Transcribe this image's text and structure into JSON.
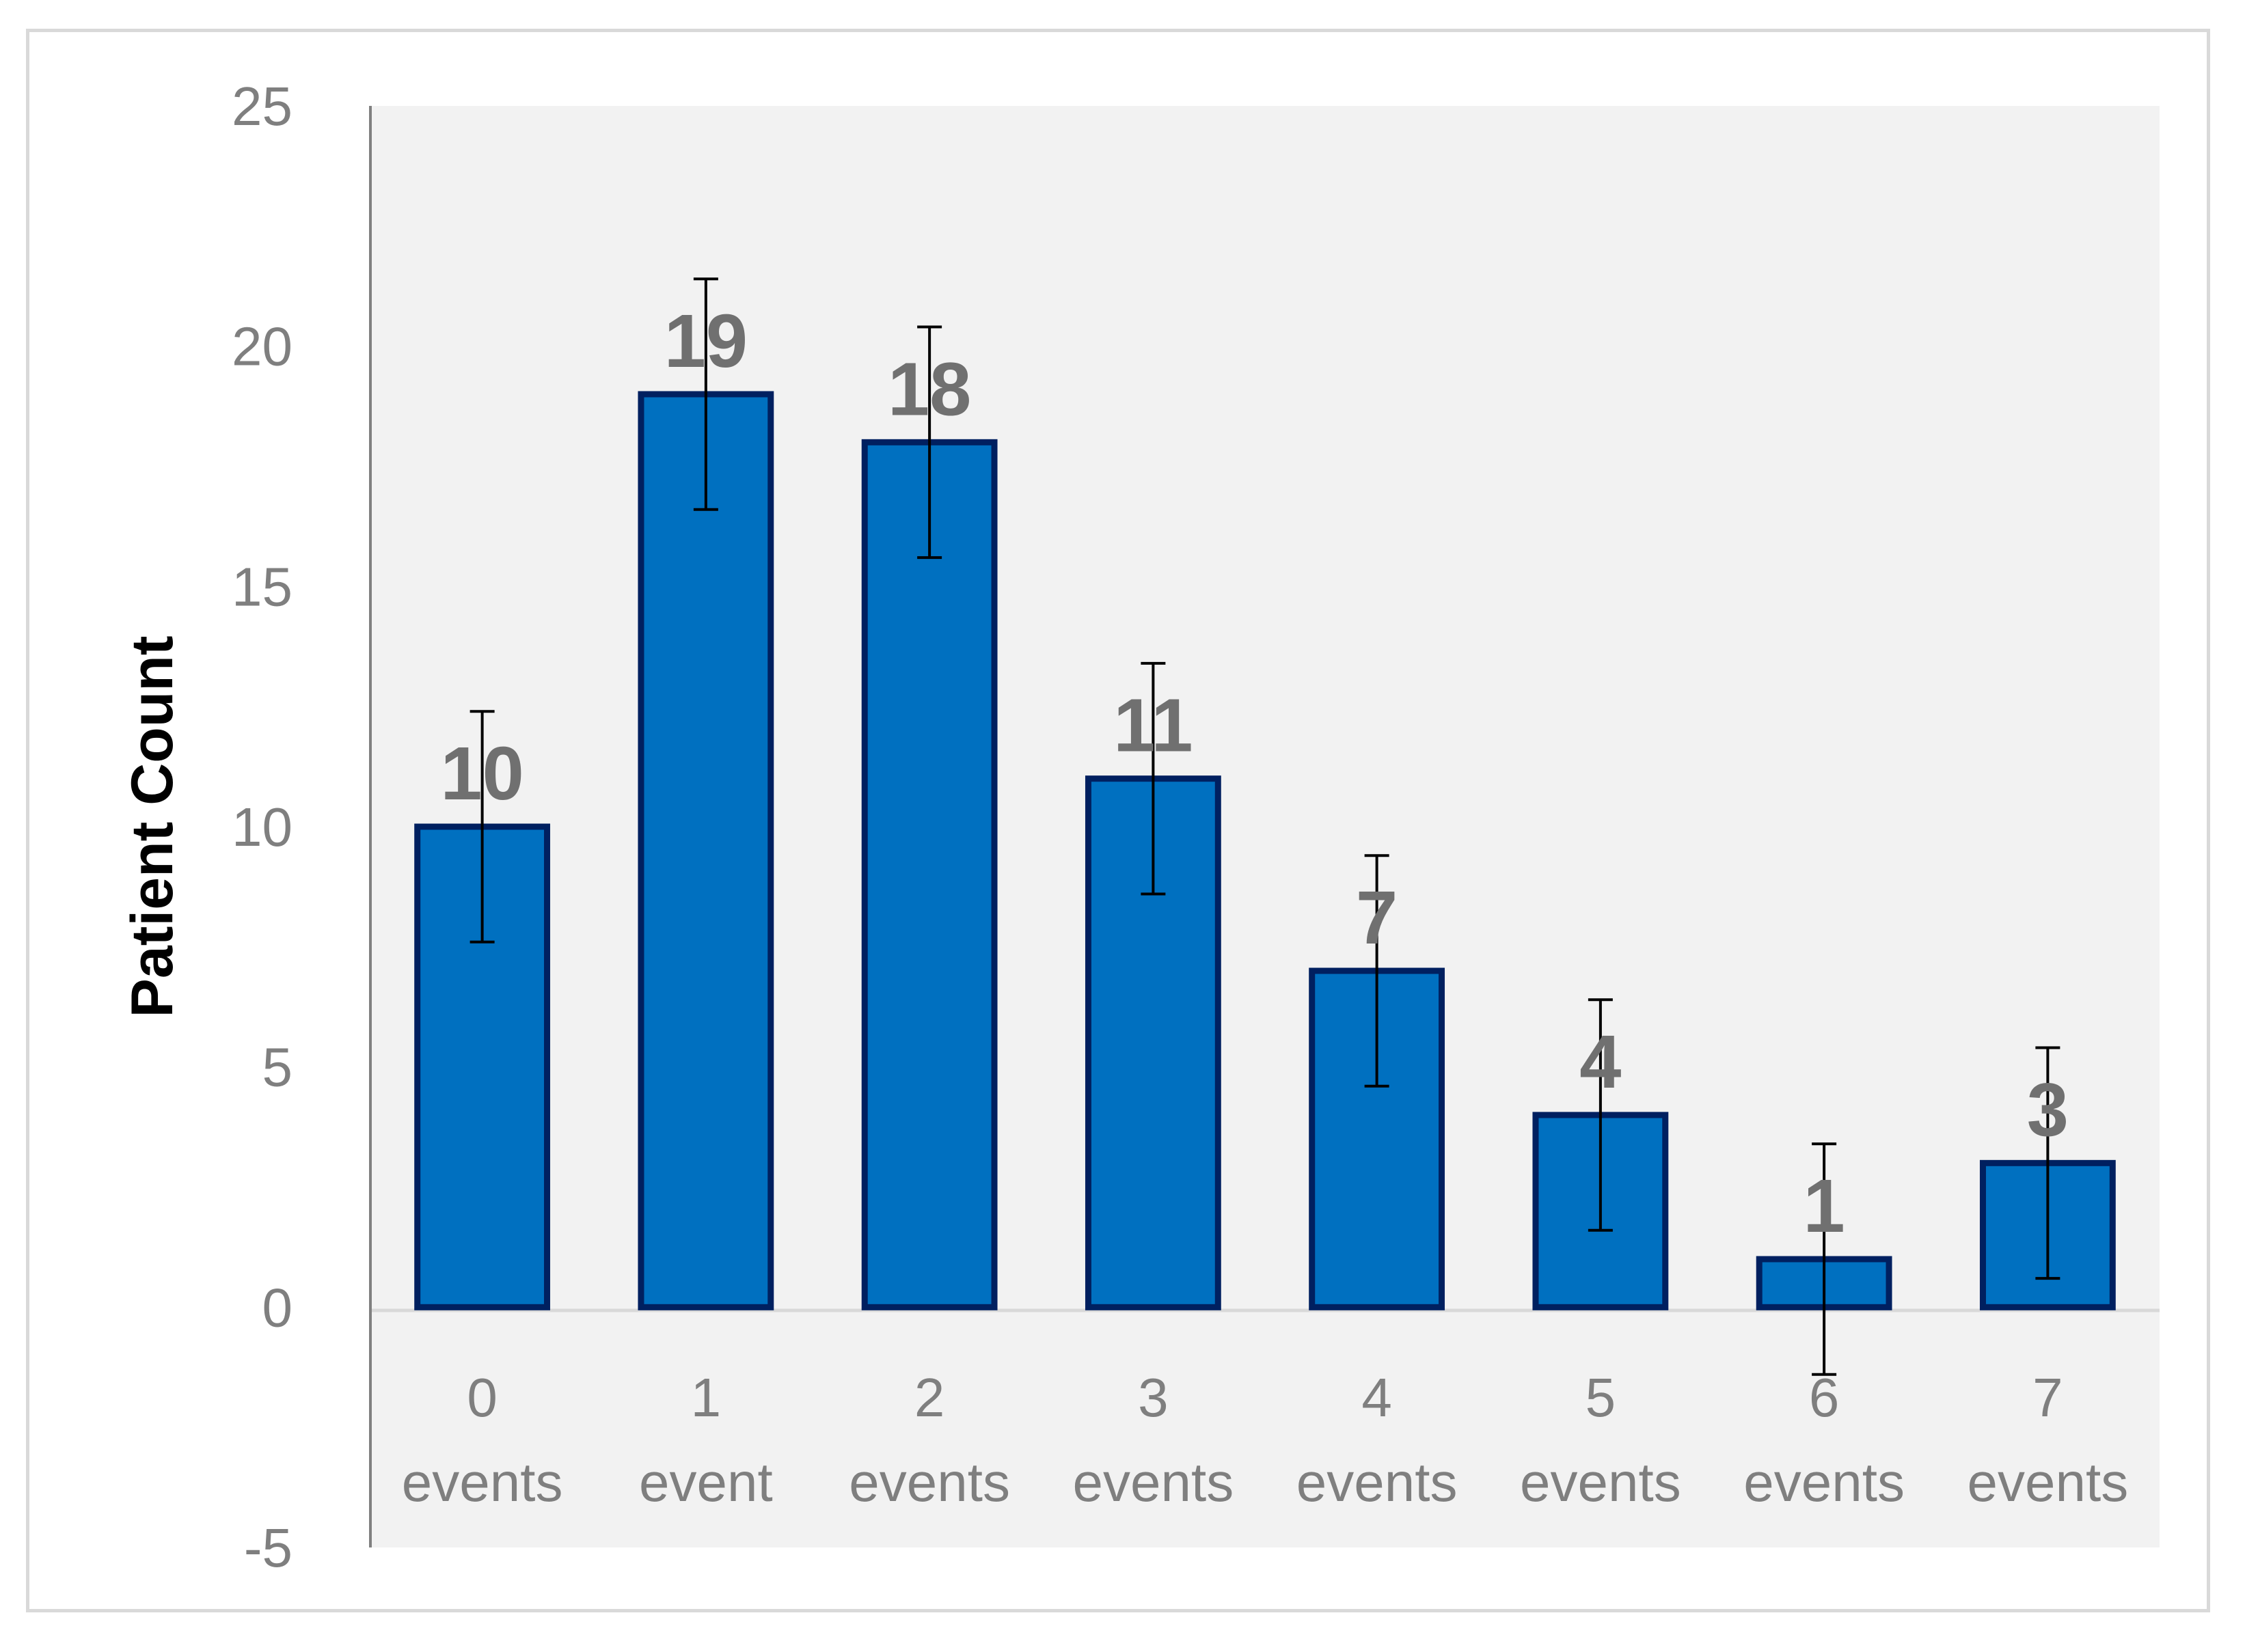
{
  "chart_data": {
    "type": "bar",
    "title": "",
    "xlabel": "",
    "ylabel": "Patient Count",
    "ylim": [
      -5,
      25
    ],
    "yticks": [
      -5,
      0,
      5,
      10,
      15,
      20,
      25
    ],
    "grid": false,
    "legend": "none",
    "categories": [
      [
        "0",
        "events"
      ],
      [
        "1",
        "event"
      ],
      [
        "2",
        "events"
      ],
      [
        "3",
        "events"
      ],
      [
        "4",
        "events"
      ],
      [
        "5",
        "events"
      ],
      [
        "6",
        "events"
      ],
      [
        "7",
        "events"
      ]
    ],
    "values": [
      10,
      19,
      18,
      11,
      7,
      4,
      1,
      3
    ],
    "error_plus_minus": [
      2.4,
      2.4,
      2.4,
      2.4,
      2.4,
      2.4,
      2.4,
      2.4
    ],
    "data_labels": [
      "10",
      "19",
      "18",
      "11",
      "7",
      "4",
      "1",
      "3"
    ],
    "colors": {
      "bar_fill": "#0070c0",
      "bar_stroke": "#002060",
      "plot_background": "#f2f2f2",
      "axis_line": "#808080",
      "zero_line": "#d9d9d9",
      "tick_text": "#7f7f7f",
      "data_label_text": "#707070",
      "error_bar": "#000000"
    }
  }
}
